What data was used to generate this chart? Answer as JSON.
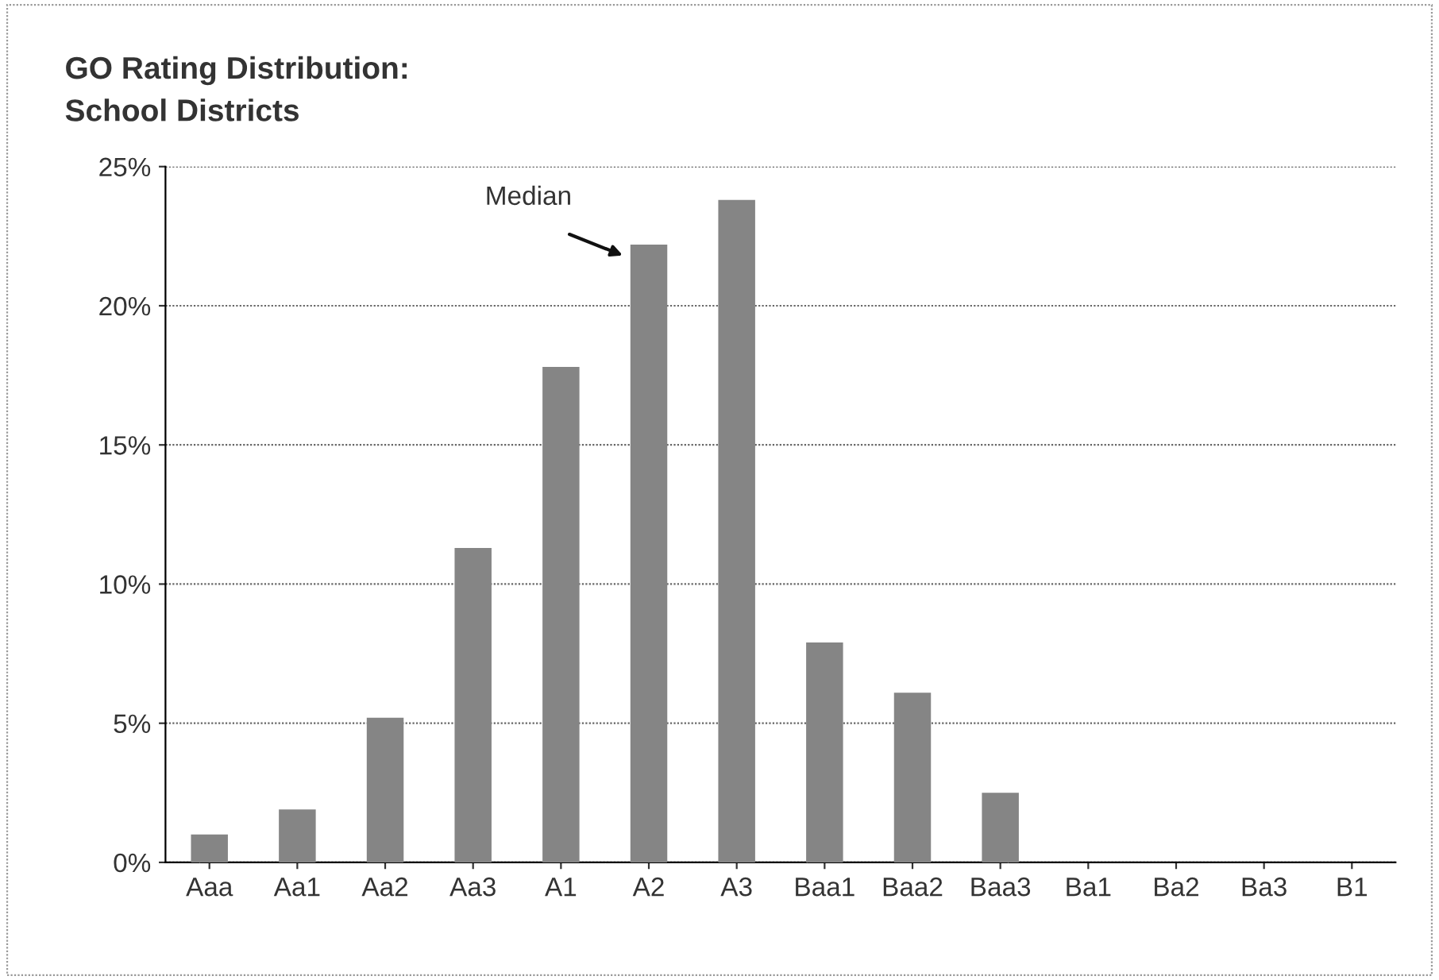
{
  "chart_data": {
    "type": "bar",
    "title": "GO Rating Distribution:\nSchool Districts",
    "categories": [
      "Aaa",
      "Aa1",
      "Aa2",
      "Aa3",
      "A1",
      "A2",
      "A3",
      "Baa1",
      "Baa2",
      "Baa3",
      "Ba1",
      "Ba2",
      "Ba3",
      "B1"
    ],
    "values": [
      1.0,
      1.9,
      5.2,
      11.3,
      17.8,
      22.2,
      23.8,
      7.9,
      6.1,
      2.5,
      0,
      0,
      0,
      0
    ],
    "color": "#858585",
    "ylim": [
      0,
      25
    ],
    "yticks": [
      {
        "value": 0,
        "label": "0%"
      },
      {
        "value": 5,
        "label": "5%"
      },
      {
        "value": 10,
        "label": "10%"
      },
      {
        "value": 15,
        "label": "15%"
      },
      {
        "value": 20,
        "label": "20%"
      },
      {
        "value": 25,
        "label": "25%"
      }
    ],
    "grid": "y",
    "annotations": [
      "Median"
    ]
  }
}
